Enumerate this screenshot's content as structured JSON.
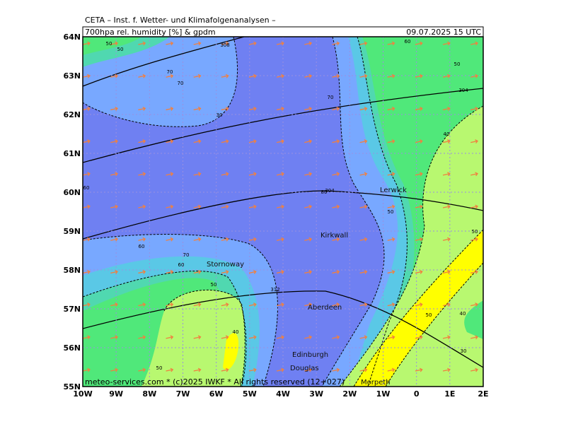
{
  "header": {
    "institute": "CETA – Inst. f. Wetter- und Klimafolgenanalysen –",
    "field": "700hpa rel. humidity [%] & gpdm",
    "valid_time": "09.07.2025 15 UTC"
  },
  "axes": {
    "x_labels": [
      "10W",
      "9W",
      "8W",
      "7W",
      "6W",
      "5W",
      "4W",
      "3W",
      "2W",
      "1W",
      "0",
      "1E",
      "2E"
    ],
    "y_labels": [
      "64N",
      "63N",
      "62N",
      "61N",
      "60N",
      "59N",
      "58N",
      "57N",
      "56N",
      "55N"
    ]
  },
  "places": [
    "Lerwick",
    "Kirkwall",
    "Stornoway",
    "Aberdeen",
    "Edinburgh",
    "Douglas",
    "Morpeth"
  ],
  "contour_labels": [
    50,
    50,
    308,
    60,
    50,
    70,
    70,
    304,
    70,
    30,
    40,
    60,
    80,
    304,
    50,
    50,
    60,
    70,
    60,
    50,
    312,
    50,
    40,
    40,
    50,
    30
  ],
  "footer": "meteo-services.com * (c)2025 IWKF * All rights reserved (12+027)"
}
